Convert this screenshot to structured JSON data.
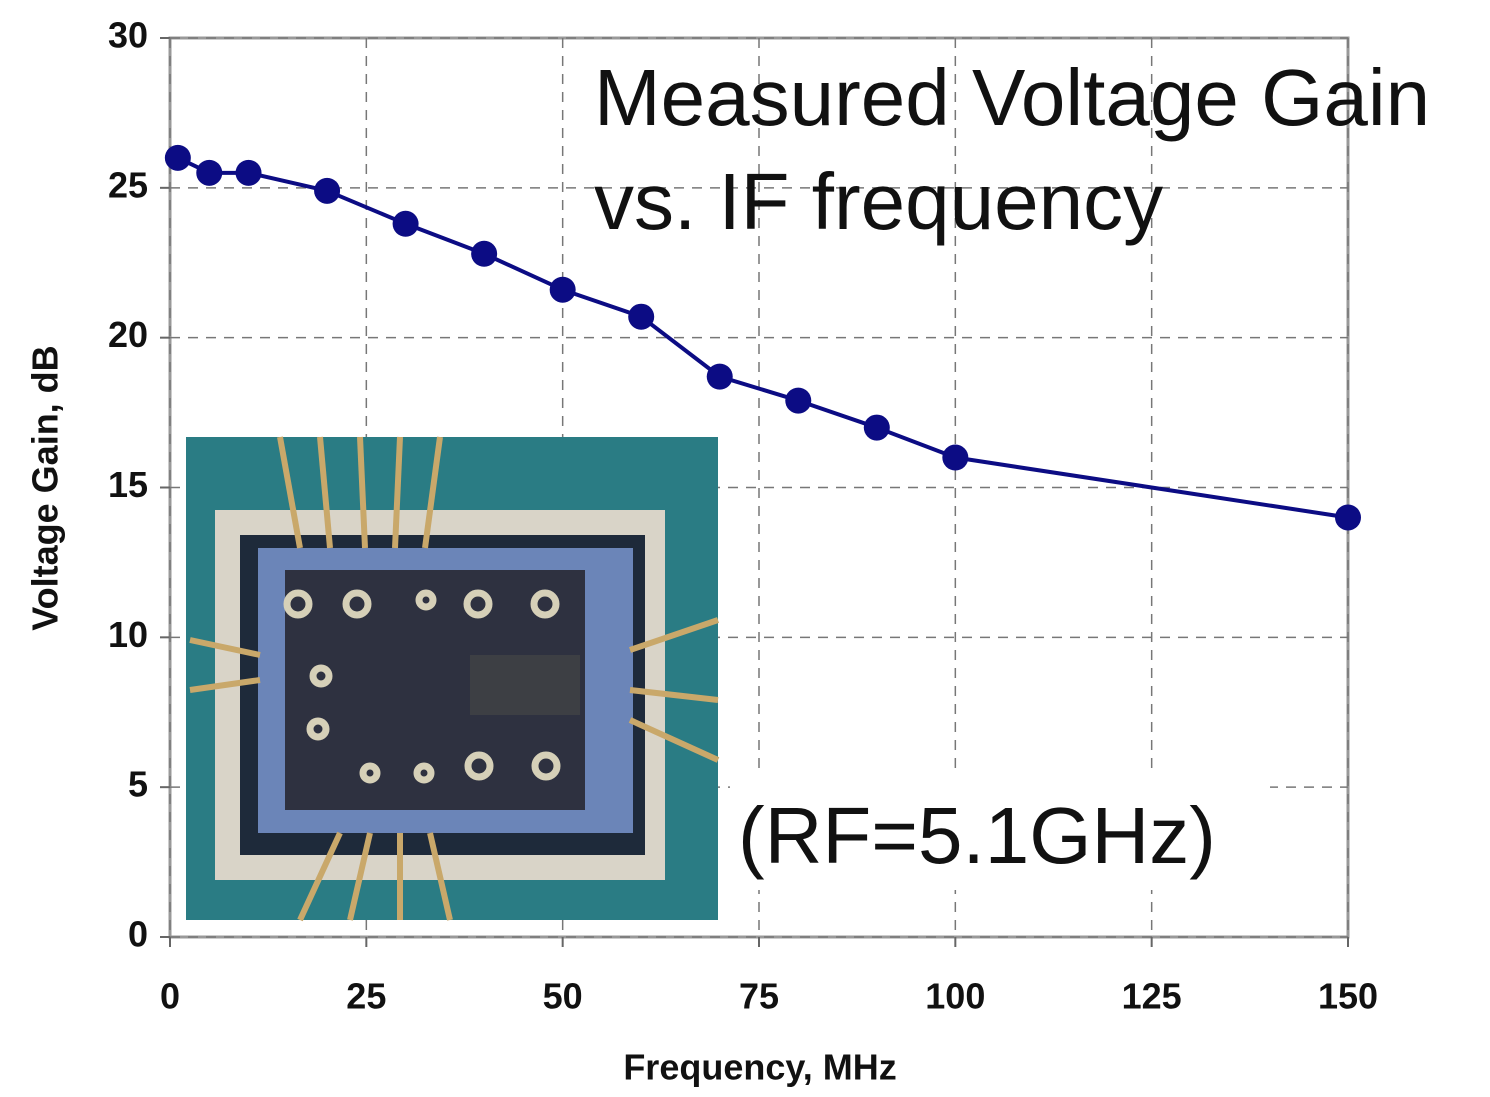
{
  "chart_data": {
    "type": "line",
    "title": "Measured Voltage Gain",
    "subtitle": "vs. IF frequency",
    "annotation": "(RF=5.1GHz)",
    "x_label": "Frequency, MHz",
    "y_label": "Voltage Gain, dB",
    "x": [
      1,
      5,
      10,
      20,
      30,
      40,
      50,
      60,
      70,
      80,
      90,
      100,
      150
    ],
    "values": [
      26,
      25.5,
      25.5,
      24.9,
      23.8,
      22.8,
      21.6,
      20.7,
      18.7,
      17.9,
      17.0,
      16.0,
      14.0
    ],
    "color": "#0c0c84",
    "xlim": [
      0,
      150
    ],
    "xticks": [
      0,
      25,
      50,
      75,
      100,
      125,
      150
    ],
    "ylim": [
      0,
      30
    ],
    "yticks": [
      0,
      5,
      10,
      15,
      20,
      25,
      30
    ],
    "grid": true
  }
}
